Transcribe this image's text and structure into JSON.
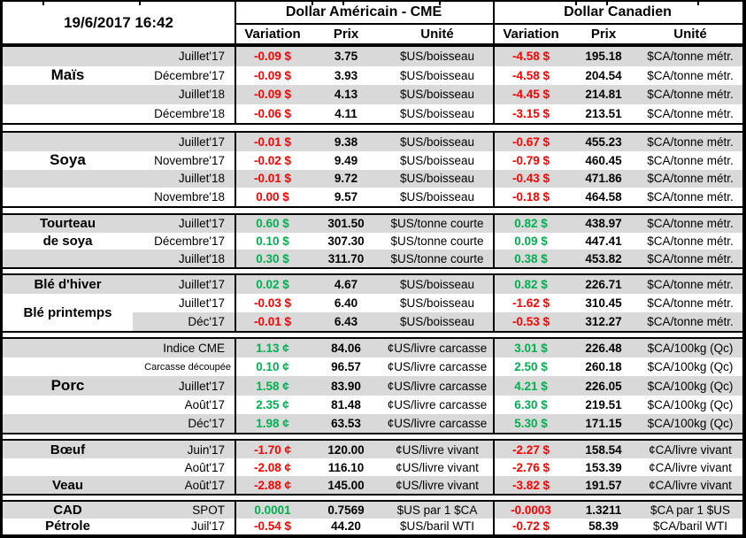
{
  "meta": {
    "timestamp": "19/6/2017 16:42"
  },
  "header": {
    "us_title": "Dollar Américain - CME",
    "ca_title": "Dollar Canadien",
    "col_variation": "Variation",
    "col_prix": "Prix",
    "col_unite": "Unité"
  },
  "colors": {
    "positive": "#00B050",
    "negative": "#FF0000",
    "stripe": "#D9D9D9",
    "border": "#000000"
  },
  "sections": [
    {
      "name": "mais",
      "labels": [
        {
          "text": "Maïs",
          "row": 1,
          "span": 1,
          "size": "lg"
        }
      ],
      "rows": [
        {
          "shade": "g",
          "contract": "Juillet'17",
          "us_var": "-0.09 $",
          "us_dir": "neg",
          "us_prix": "3.75",
          "us_unit": "$US/boisseau",
          "ca_var": "-4.58 $",
          "ca_dir": "neg",
          "ca_prix": "195.18",
          "ca_unit": "$CA/tonne métr."
        },
        {
          "shade": "w",
          "contract": "Décembre'17",
          "us_var": "-0.09 $",
          "us_dir": "neg",
          "us_prix": "3.93",
          "us_unit": "$US/boisseau",
          "ca_var": "-4.58 $",
          "ca_dir": "neg",
          "ca_prix": "204.54",
          "ca_unit": "$CA/tonne métr."
        },
        {
          "shade": "g",
          "contract": "Juillet'18",
          "us_var": "-0.09 $",
          "us_dir": "neg",
          "us_prix": "4.13",
          "us_unit": "$US/boisseau",
          "ca_var": "-4.45 $",
          "ca_dir": "neg",
          "ca_prix": "214.81",
          "ca_unit": "$CA/tonne métr."
        },
        {
          "shade": "w",
          "contract": "Décembre'18",
          "us_var": "-0.06 $",
          "us_dir": "neg",
          "us_prix": "4.11",
          "us_unit": "$US/boisseau",
          "ca_var": "-3.15 $",
          "ca_dir": "neg",
          "ca_prix": "213.51",
          "ca_unit": "$CA/tonne métr."
        }
      ]
    },
    {
      "name": "soya",
      "labels": [
        {
          "text": "Soya",
          "row": 1,
          "span": 1,
          "size": "lg"
        }
      ],
      "rows": [
        {
          "shade": "g",
          "contract": "Juillet'17",
          "us_var": "-0.01 $",
          "us_dir": "neg",
          "us_prix": "9.38",
          "us_unit": "$US/boisseau",
          "ca_var": "-0.67 $",
          "ca_dir": "neg",
          "ca_prix": "455.23",
          "ca_unit": "$CA/tonne métr."
        },
        {
          "shade": "w",
          "contract": "Novembre'17",
          "us_var": "-0.02 $",
          "us_dir": "neg",
          "us_prix": "9.49",
          "us_unit": "$US/boisseau",
          "ca_var": "-0.79 $",
          "ca_dir": "neg",
          "ca_prix": "460.45",
          "ca_unit": "$CA/tonne métr."
        },
        {
          "shade": "g",
          "contract": "Juillet'18",
          "us_var": "-0.01 $",
          "us_dir": "neg",
          "us_prix": "9.72",
          "us_unit": "$US/boisseau",
          "ca_var": "-0.43 $",
          "ca_dir": "neg",
          "ca_prix": "471.86",
          "ca_unit": "$CA/tonne métr."
        },
        {
          "shade": "w",
          "contract": "Novembre'18",
          "us_var": "0.00 $",
          "us_dir": "neg",
          "us_prix": "9.57",
          "us_unit": "$US/boisseau",
          "ca_var": "-0.18 $",
          "ca_dir": "neg",
          "ca_prix": "464.58",
          "ca_unit": "$CA/tonne métr."
        }
      ]
    },
    {
      "name": "tourteau",
      "labels": [
        {
          "text": "Tourteau",
          "row": 0,
          "span": 1,
          "size": "md"
        },
        {
          "text": "de soya",
          "row": 1,
          "span": 1,
          "size": "md"
        }
      ],
      "rows": [
        {
          "shade": "g",
          "contract": "Juillet'17",
          "us_var": "0.60 $",
          "us_dir": "pos",
          "us_prix": "301.50",
          "us_unit": "$US/tonne courte",
          "ca_var": "0.82 $",
          "ca_dir": "pos",
          "ca_prix": "438.97",
          "ca_unit": "$CA/tonne métr."
        },
        {
          "shade": "w",
          "contract": "Décembre'17",
          "us_var": "0.10 $",
          "us_dir": "pos",
          "us_prix": "307.30",
          "us_unit": "$US/tonne courte",
          "ca_var": "0.09 $",
          "ca_dir": "pos",
          "ca_prix": "447.41",
          "ca_unit": "$CA/tonne métr."
        },
        {
          "shade": "g",
          "contract": "Juillet'18",
          "us_var": "0.30 $",
          "us_dir": "pos",
          "us_prix": "311.70",
          "us_unit": "$US/tonne courte",
          "ca_var": "0.38 $",
          "ca_dir": "pos",
          "ca_prix": "453.82",
          "ca_unit": "$CA/tonne métr."
        }
      ]
    },
    {
      "name": "ble",
      "labels": [
        {
          "text": "Blé d'hiver",
          "row": 0,
          "span": 1,
          "size": "md"
        },
        {
          "text": "Blé printemps",
          "row": 1,
          "span": 2,
          "size": "md"
        }
      ],
      "rows": [
        {
          "shade": "g",
          "contract": "Juillet'17",
          "us_var": "0.02 $",
          "us_dir": "pos",
          "us_prix": "4.67",
          "us_unit": "$US/boisseau",
          "ca_var": "0.82 $",
          "ca_dir": "pos",
          "ca_prix": "226.71",
          "ca_unit": "$CA/tonne métr."
        },
        {
          "shade": "w",
          "contract": "Juillet'17",
          "us_var": "-0.03 $",
          "us_dir": "neg",
          "us_prix": "6.40",
          "us_unit": "$US/boisseau",
          "ca_var": "-1.62 $",
          "ca_dir": "neg",
          "ca_prix": "310.45",
          "ca_unit": "$CA/tonne métr."
        },
        {
          "shade": "p",
          "contract": "Déc'17",
          "us_var": "-0.01 $",
          "us_dir": "neg",
          "us_prix": "6.43",
          "us_unit": "$US/boisseau",
          "ca_var": "-0.53 $",
          "ca_dir": "neg",
          "ca_prix": "312.27",
          "ca_unit": "$CA/tonne métr."
        }
      ]
    },
    {
      "name": "porc",
      "labels": [
        {
          "text": "Porc",
          "row": 2,
          "span": 1,
          "size": "lg"
        }
      ],
      "rows": [
        {
          "shade": "g",
          "contract": "Indice CME",
          "us_var": "1.13 ¢",
          "us_dir": "pos",
          "us_prix": "84.06",
          "us_unit": "¢US/livre carcasse",
          "ca_var": "3.01 $",
          "ca_dir": "pos",
          "ca_prix": "226.48",
          "ca_unit": "$CA/100kg (Qc)"
        },
        {
          "shade": "w",
          "contract": "Carcasse découpée",
          "small": true,
          "us_var": "0.10 ¢",
          "us_dir": "pos",
          "us_prix": "96.57",
          "us_unit": "¢US/livre carcasse",
          "ca_var": "2.50 $",
          "ca_dir": "pos",
          "ca_prix": "260.18",
          "ca_unit": "$CA/100kg (Qc)"
        },
        {
          "shade": "g",
          "contract": "Juillet'17",
          "us_var": "1.58 ¢",
          "us_dir": "pos",
          "us_prix": "83.90",
          "us_unit": "¢US/livre carcasse",
          "ca_var": "4.21 $",
          "ca_dir": "pos",
          "ca_prix": "226.05",
          "ca_unit": "$CA/100kg (Qc)"
        },
        {
          "shade": "w",
          "contract": "Août'17",
          "us_var": "2.35 ¢",
          "us_dir": "pos",
          "us_prix": "81.48",
          "us_unit": "¢US/livre carcasse",
          "ca_var": "6.30 $",
          "ca_dir": "pos",
          "ca_prix": "219.51",
          "ca_unit": "$CA/100kg (Qc)"
        },
        {
          "shade": "g",
          "contract": "Déc'17",
          "us_var": "1.98 ¢",
          "us_dir": "pos",
          "us_prix": "63.53",
          "us_unit": "¢US/livre carcasse",
          "ca_var": "5.30 $",
          "ca_dir": "pos",
          "ca_prix": "171.15",
          "ca_unit": "$CA/100kg (Qc)"
        }
      ]
    },
    {
      "name": "boeuf",
      "labels": [
        {
          "text": "Bœuf",
          "row": 0,
          "span": 1,
          "size": "md"
        },
        {
          "text": "Veau",
          "row": 2,
          "span": 1,
          "size": "md"
        }
      ],
      "rows": [
        {
          "shade": "g",
          "contract": "Juin'17",
          "us_var": "-1.70 ¢",
          "us_dir": "neg",
          "us_prix": "120.00",
          "us_unit": "¢US/livre vivant",
          "ca_var": "-2.27 $",
          "ca_dir": "neg",
          "ca_prix": "158.54",
          "ca_unit": "¢CA/livre vivant"
        },
        {
          "shade": "w",
          "contract": "Août'17",
          "us_var": "-2.08 ¢",
          "us_dir": "neg",
          "us_prix": "116.10",
          "us_unit": "¢US/livre vivant",
          "ca_var": "-2.76 $",
          "ca_dir": "neg",
          "ca_prix": "153.39",
          "ca_unit": "¢CA/livre vivant"
        },
        {
          "shade": "g",
          "contract": "Août'17",
          "us_var": "-2.88 ¢",
          "us_dir": "neg",
          "us_prix": "145.00",
          "us_unit": "¢US/livre vivant",
          "ca_var": "-3.82 $",
          "ca_dir": "neg",
          "ca_prix": "191.57",
          "ca_unit": "¢CA/livre vivant"
        }
      ]
    },
    {
      "name": "cad",
      "labels": [
        {
          "text": "CAD",
          "row": 0,
          "span": 1,
          "size": "md"
        },
        {
          "text": "Pétrole",
          "row": 1,
          "span": 1,
          "size": "md"
        }
      ],
      "rows": [
        {
          "shade": "g",
          "contract": "SPOT",
          "us_var": "0.0001",
          "us_dir": "pos",
          "us_prix": "0.7569",
          "us_unit": "$US par 1 $CA",
          "ca_var": "-0.0003",
          "ca_dir": "neg",
          "ca_prix": "1.3211",
          "ca_unit": "$CA par 1 $US"
        },
        {
          "shade": "w",
          "contract": "Juil'17",
          "us_var": "-0.54 $",
          "us_dir": "neg",
          "us_prix": "44.20",
          "us_unit": "$US/baril WTI",
          "ca_var": "-0.72 $",
          "ca_dir": "neg",
          "ca_prix": "58.39",
          "ca_unit": "$CA/baril WTI"
        }
      ]
    }
  ]
}
